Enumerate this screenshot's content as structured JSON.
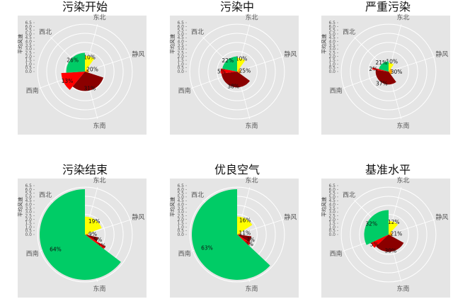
{
  "colors": {
    "panel_bg": "#e5e5e5",
    "grid": "#ffffff",
    "east": "#ffff00",
    "calm": "#ffa500",
    "southeast": "#8b0000",
    "southwest": "#ff0000",
    "northwest": "#00cc66"
  },
  "chart_data": [
    {
      "type": "polar-bar",
      "title": "污染开始",
      "ylabel": "平均风速",
      "ticks": [
        "0.0",
        "0.5",
        "1.0",
        "1.5",
        "2.0",
        "2.5",
        "3.0",
        "3.5",
        "4.0",
        "4.5",
        "5.0",
        "5.5",
        "6.0",
        "6.5"
      ],
      "ylim": [
        0,
        6.5
      ],
      "direction_labels": [
        "东北",
        "静风",
        "东南",
        "西南",
        "西北"
      ],
      "sectors": [
        {
          "direction": "东北",
          "percent_label": "10%",
          "mean_speed": 2.2
        },
        {
          "direction": "静风",
          "percent_label": "20%",
          "mean_speed": 0.5
        },
        {
          "direction": "东南",
          "percent_label": "31%",
          "mean_speed": 2.7
        },
        {
          "direction": "西南",
          "percent_label": "13%",
          "mean_speed": 3.3
        },
        {
          "direction": "西北",
          "percent_label": "26%",
          "mean_speed": 2.6
        }
      ]
    },
    {
      "type": "polar-bar",
      "title": "污染中",
      "ylabel": "平均风速",
      "ticks": [
        "0.0",
        "0.5",
        "1.0",
        "1.5",
        "2.0",
        "2.5",
        "3.0",
        "3.5",
        "4.0",
        "4.5",
        "5.0",
        "5.5",
        "6.0",
        "6.5"
      ],
      "ylim": [
        0,
        6.5
      ],
      "direction_labels": [
        "东北",
        "静风",
        "东南",
        "西南",
        "西北"
      ],
      "sectors": [
        {
          "direction": "东北",
          "percent_label": "10%",
          "mean_speed": 1.9
        },
        {
          "direction": "静风",
          "percent_label": "25%",
          "mean_speed": 0.5
        },
        {
          "direction": "东南",
          "percent_label": "38%",
          "mean_speed": 2.2
        },
        {
          "direction": "西南",
          "percent_label": "5%",
          "mean_speed": 2.3
        },
        {
          "direction": "西北",
          "percent_label": "22%",
          "mean_speed": 2.1
        }
      ]
    },
    {
      "type": "polar-bar",
      "title": "严重污染",
      "ylabel": "平均风速",
      "ticks": [
        "0.0",
        "0.5",
        "1.0",
        "1.5",
        "2.0",
        "2.5",
        "3.0",
        "3.5",
        "4.0",
        "4.5",
        "5.0",
        "5.5",
        "6.0",
        "6.5"
      ],
      "ylim": [
        0,
        6.5
      ],
      "direction_labels": [
        "东北",
        "静风",
        "东南",
        "西南",
        "西北"
      ],
      "sectors": [
        {
          "direction": "东北",
          "percent_label": "10%",
          "mean_speed": 1.2
        },
        {
          "direction": "静风",
          "percent_label": "30%",
          "mean_speed": 0.5
        },
        {
          "direction": "东南",
          "percent_label": "37%",
          "mean_speed": 1.8
        },
        {
          "direction": "西南",
          "percent_label": "2%",
          "mean_speed": 2.3
        },
        {
          "direction": "西北",
          "percent_label": "21%",
          "mean_speed": 1.4
        }
      ]
    },
    {
      "type": "polar-bar",
      "title": "污染结束",
      "ylabel": "平均风速",
      "ticks": [
        "0.0",
        "0.5",
        "1.0",
        "1.5",
        "2.0",
        "2.5",
        "3.0",
        "3.5",
        "4.0",
        "4.5",
        "5.0",
        "5.5",
        "6.0",
        "6.5"
      ],
      "ylim": [
        0,
        6.5
      ],
      "direction_labels": [
        "东北",
        "静风",
        "东南",
        "西南",
        "西北"
      ],
      "sectors": [
        {
          "direction": "东北",
          "percent_label": "19%",
          "mean_speed": 2.5
        },
        {
          "direction": "静风",
          "percent_label": "9%",
          "mean_speed": 0.5
        },
        {
          "direction": "东南",
          "percent_label": "5%",
          "mean_speed": 1.9
        },
        {
          "direction": "西南",
          "percent_label": "2%",
          "mean_speed": 3.3
        },
        {
          "direction": "西北",
          "percent_label": "64%",
          "mean_speed": 6.3
        }
      ]
    },
    {
      "type": "polar-bar",
      "title": "优良空气",
      "ylabel": "平均风速",
      "ticks": [
        "0.0",
        "0.5",
        "1.0",
        "1.5",
        "2.0",
        "2.5",
        "3.0",
        "3.5",
        "4.0",
        "4.5",
        "5.0",
        "5.5",
        "6.0",
        "6.5"
      ],
      "ylim": [
        0,
        6.5
      ],
      "direction_labels": [
        "东北",
        "静风",
        "东南",
        "西南",
        "西北"
      ],
      "sectors": [
        {
          "direction": "东北",
          "percent_label": "16%",
          "mean_speed": 2.5
        },
        {
          "direction": "静风",
          "percent_label": "11%",
          "mean_speed": 0.5
        },
        {
          "direction": "东南",
          "percent_label": "7%",
          "mean_speed": 2.0
        },
        {
          "direction": "西南",
          "percent_label": "3%",
          "mean_speed": 2.2
        },
        {
          "direction": "西北",
          "percent_label": "63%",
          "mean_speed": 6.3
        }
      ]
    },
    {
      "type": "polar-bar",
      "title": "基准水平",
      "ylabel": "平均风速",
      "ticks": [
        "0.0",
        "0.5",
        "1.0",
        "1.5",
        "2.0",
        "2.5",
        "3.0",
        "3.5",
        "4.0",
        "4.5",
        "5.0",
        "5.5",
        "6.0",
        "6.5"
      ],
      "ylim": [
        0,
        6.5
      ],
      "direction_labels": [
        "东北",
        "静风",
        "东南",
        "西南",
        "西北"
      ],
      "sectors": [
        {
          "direction": "东北",
          "percent_label": "12%",
          "mean_speed": 1.9
        },
        {
          "direction": "静风",
          "percent_label": "21%",
          "mean_speed": 0.5
        },
        {
          "direction": "东南",
          "percent_label": "30%",
          "mean_speed": 2.4
        },
        {
          "direction": "西南",
          "percent_label": "5%",
          "mean_speed": 2.7
        },
        {
          "direction": "西北",
          "percent_label": "32%",
          "mean_speed": 3.4
        }
      ]
    }
  ]
}
